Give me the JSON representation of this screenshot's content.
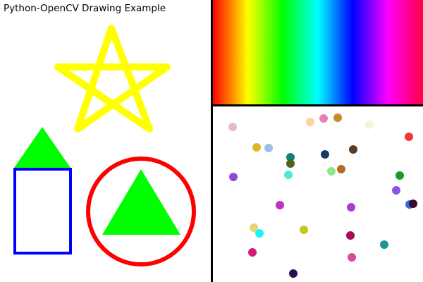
{
  "window": {
    "title": "Python-OpenCV Drawing Example"
  },
  "colors": {
    "background": "#ffffff",
    "divider": "#000000",
    "star": "#ffff00",
    "house_roof": "#00ff00",
    "house_body": "#0000ff",
    "circle": "#ff0000",
    "circle_triangle": "#00ff00"
  },
  "shapes": {
    "star": {
      "name": "star",
      "points": 5,
      "stroke": "#ffff00"
    },
    "house_roof": {
      "name": "roof-triangle",
      "fill": "#00ff00"
    },
    "house_body": {
      "name": "house-rectangle",
      "stroke": "#0000ff"
    },
    "circle": {
      "name": "circle",
      "stroke": "#ff0000"
    },
    "circle_triangle": {
      "name": "inner-triangle",
      "fill": "#00ff00"
    }
  },
  "gradient": {
    "description_type": "hue-spectrum",
    "stops": [
      "#ff0000",
      "#ffff00",
      "#00ff00",
      "#00ffff",
      "#0000ff",
      "#ff00ff",
      "#ff0000"
    ]
  },
  "dots": {
    "count": 36
  }
}
